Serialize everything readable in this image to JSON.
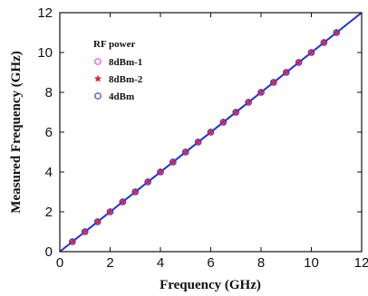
{
  "chart_data": {
    "type": "scatter",
    "xlabel": "Frequency (GHz)",
    "ylabel": "Measured Frequency (GHz)",
    "xlim": [
      0,
      12
    ],
    "ylim": [
      0,
      12
    ],
    "xticks": [
      "0",
      "2",
      "4",
      "6",
      "8",
      "10",
      "12"
    ],
    "yticks": [
      "0",
      "2",
      "4",
      "6",
      "8",
      "10",
      "12"
    ],
    "grid": false,
    "legend": {
      "title": "RF power",
      "placement": "top-left"
    },
    "reference_line": {
      "x": [
        0,
        12
      ],
      "y": [
        0,
        12
      ],
      "color": "#1f2fd6"
    },
    "series": [
      {
        "name": "8dBm-1",
        "marker": "open-circle",
        "color": "#ff44cc",
        "x": [
          0.5,
          1.0,
          1.5,
          2.0,
          2.5,
          3.0,
          3.5,
          4.0,
          4.5,
          5.0,
          5.5,
          6.0,
          6.5,
          7.0,
          7.5,
          8.0,
          8.5,
          9.0,
          9.5,
          10.0,
          10.5,
          11.0
        ],
        "y": [
          0.5,
          1.0,
          1.5,
          2.0,
          2.5,
          3.0,
          3.5,
          4.0,
          4.5,
          5.0,
          5.5,
          6.0,
          6.5,
          7.0,
          7.5,
          8.0,
          8.5,
          9.0,
          9.5,
          10.0,
          10.5,
          11.0
        ]
      },
      {
        "name": "8dBm-2",
        "marker": "star",
        "color": "#e8202a",
        "x": [
          0.5,
          1.0,
          1.5,
          2.0,
          2.5,
          3.0,
          3.5,
          4.0,
          4.5,
          5.0,
          5.5,
          6.0,
          6.5,
          7.0,
          7.5,
          8.0,
          8.5,
          9.0,
          9.5,
          10.0,
          10.5,
          11.0
        ],
        "y": [
          0.5,
          1.0,
          1.5,
          2.0,
          2.5,
          3.0,
          3.5,
          4.0,
          4.5,
          5.0,
          5.5,
          6.0,
          6.5,
          7.0,
          7.5,
          8.0,
          8.5,
          9.0,
          9.5,
          10.0,
          10.5,
          11.0
        ]
      },
      {
        "name": "4dBm",
        "marker": "open-circle",
        "color": "#3b3bd8",
        "x": [
          0.5,
          1.0,
          1.5,
          2.0,
          2.5,
          3.0,
          3.5,
          4.0,
          4.5,
          5.0,
          5.5,
          6.0,
          6.5,
          7.0,
          7.5,
          8.0,
          8.5,
          9.0,
          9.5,
          10.0,
          10.5,
          11.0
        ],
        "y": [
          0.5,
          1.0,
          1.5,
          2.0,
          2.5,
          3.0,
          3.5,
          4.0,
          4.5,
          5.0,
          5.5,
          6.0,
          6.5,
          7.0,
          7.5,
          8.0,
          8.5,
          9.0,
          9.5,
          10.0,
          10.5,
          11.0
        ]
      }
    ]
  }
}
